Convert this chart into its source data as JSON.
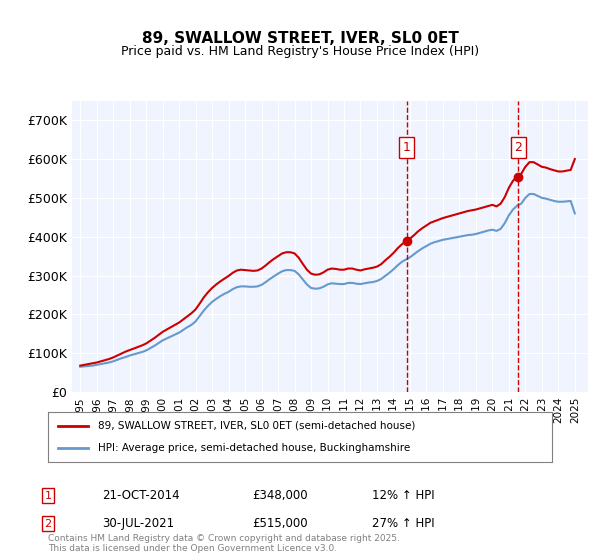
{
  "title": "89, SWALLOW STREET, IVER, SL0 0ET",
  "subtitle": "Price paid vs. HM Land Registry's House Price Index (HPI)",
  "legend_line1": "89, SWALLOW STREET, IVER, SL0 0ET (semi-detached house)",
  "legend_line2": "HPI: Average price, semi-detached house, Buckinghamshire",
  "sale1_label": "1",
  "sale1_date": "21-OCT-2014",
  "sale1_price": "£348,000",
  "sale1_hpi": "12% ↑ HPI",
  "sale1_year": 2014.8,
  "sale2_label": "2",
  "sale2_date": "30-JUL-2021",
  "sale2_price": "£515,000",
  "sale2_hpi": "27% ↑ HPI",
  "sale2_year": 2021.58,
  "hpi_color": "#6699cc",
  "price_color": "#cc0000",
  "marker_color": "#cc0000",
  "vline_color": "#cc0000",
  "background_color": "#f0f4ff",
  "ylabel_prefix": "£",
  "ytick_labels": [
    "£0",
    "£100K",
    "£200K",
    "£300K",
    "£400K",
    "£500K",
    "£600K",
    "£700K"
  ],
  "ytick_values": [
    0,
    100000,
    200000,
    300000,
    400000,
    500000,
    600000,
    700000
  ],
  "ylim": [
    0,
    750000
  ],
  "xlim_start": 1994.5,
  "xlim_end": 2025.8,
  "footer": "Contains HM Land Registry data © Crown copyright and database right 2025.\nThis data is licensed under the Open Government Licence v3.0.",
  "hpi_data_x": [
    1995.0,
    1995.25,
    1995.5,
    1995.75,
    1996.0,
    1996.25,
    1996.5,
    1996.75,
    1997.0,
    1997.25,
    1997.5,
    1997.75,
    1998.0,
    1998.25,
    1998.5,
    1998.75,
    1999.0,
    1999.25,
    1999.5,
    1999.75,
    2000.0,
    2000.25,
    2000.5,
    2000.75,
    2001.0,
    2001.25,
    2001.5,
    2001.75,
    2002.0,
    2002.25,
    2002.5,
    2002.75,
    2003.0,
    2003.25,
    2003.5,
    2003.75,
    2004.0,
    2004.25,
    2004.5,
    2004.75,
    2005.0,
    2005.25,
    2005.5,
    2005.75,
    2006.0,
    2006.25,
    2006.5,
    2006.75,
    2007.0,
    2007.25,
    2007.5,
    2007.75,
    2008.0,
    2008.25,
    2008.5,
    2008.75,
    2009.0,
    2009.25,
    2009.5,
    2009.75,
    2010.0,
    2010.25,
    2010.5,
    2010.75,
    2011.0,
    2011.25,
    2011.5,
    2011.75,
    2012.0,
    2012.25,
    2012.5,
    2012.75,
    2013.0,
    2013.25,
    2013.5,
    2013.75,
    2014.0,
    2014.25,
    2014.5,
    2014.75,
    2015.0,
    2015.25,
    2015.5,
    2015.75,
    2016.0,
    2016.25,
    2016.5,
    2016.75,
    2017.0,
    2017.25,
    2017.5,
    2017.75,
    2018.0,
    2018.25,
    2018.5,
    2018.75,
    2019.0,
    2019.25,
    2019.5,
    2019.75,
    2020.0,
    2020.25,
    2020.5,
    2020.75,
    2021.0,
    2021.25,
    2021.5,
    2021.75,
    2022.0,
    2022.25,
    2022.5,
    2022.75,
    2023.0,
    2023.25,
    2023.5,
    2023.75,
    2024.0,
    2024.25,
    2024.5,
    2024.75,
    2025.0
  ],
  "hpi_data_y": [
    65000,
    66000,
    67000,
    68000,
    70000,
    72000,
    74000,
    76000,
    79000,
    83000,
    87000,
    90000,
    94000,
    97000,
    100000,
    103000,
    107000,
    113000,
    119000,
    126000,
    133000,
    138000,
    143000,
    148000,
    153000,
    160000,
    167000,
    173000,
    182000,
    196000,
    210000,
    222000,
    232000,
    240000,
    247000,
    253000,
    258000,
    265000,
    270000,
    272000,
    272000,
    271000,
    271000,
    272000,
    276000,
    283000,
    291000,
    298000,
    305000,
    311000,
    314000,
    314000,
    312000,
    303000,
    290000,
    277000,
    268000,
    266000,
    267000,
    271000,
    277000,
    280000,
    279000,
    278000,
    278000,
    281000,
    281000,
    279000,
    278000,
    280000,
    282000,
    283000,
    286000,
    291000,
    299000,
    307000,
    316000,
    326000,
    335000,
    341000,
    347000,
    355000,
    363000,
    370000,
    376000,
    382000,
    386000,
    389000,
    392000,
    394000,
    396000,
    398000,
    400000,
    402000,
    404000,
    405000,
    407000,
    410000,
    413000,
    416000,
    418000,
    415000,
    420000,
    435000,
    455000,
    470000,
    480000,
    485000,
    500000,
    510000,
    510000,
    505000,
    500000,
    498000,
    495000,
    492000,
    490000,
    490000,
    491000,
    492000,
    460000
  ],
  "price_data_x": [
    1995.0,
    1995.25,
    1995.5,
    1995.75,
    1996.0,
    1996.25,
    1996.5,
    1996.75,
    1997.0,
    1997.25,
    1997.5,
    1997.75,
    1998.0,
    1998.25,
    1998.5,
    1998.75,
    1999.0,
    1999.25,
    1999.5,
    1999.75,
    2000.0,
    2000.25,
    2000.5,
    2000.75,
    2001.0,
    2001.25,
    2001.5,
    2001.75,
    2002.0,
    2002.25,
    2002.5,
    2002.75,
    2003.0,
    2003.25,
    2003.5,
    2003.75,
    2004.0,
    2004.25,
    2004.5,
    2004.75,
    2005.0,
    2005.25,
    2005.5,
    2005.75,
    2006.0,
    2006.25,
    2006.5,
    2006.75,
    2007.0,
    2007.25,
    2007.5,
    2007.75,
    2008.0,
    2008.25,
    2008.5,
    2008.75,
    2009.0,
    2009.25,
    2009.5,
    2009.75,
    2010.0,
    2010.25,
    2010.5,
    2010.75,
    2011.0,
    2011.25,
    2011.5,
    2011.75,
    2012.0,
    2012.25,
    2012.5,
    2012.75,
    2013.0,
    2013.25,
    2013.5,
    2013.75,
    2014.0,
    2014.25,
    2014.5,
    2014.75,
    2015.0,
    2015.25,
    2015.5,
    2015.75,
    2016.0,
    2016.25,
    2016.5,
    2016.75,
    2017.0,
    2017.25,
    2017.5,
    2017.75,
    2018.0,
    2018.25,
    2018.5,
    2018.75,
    2019.0,
    2019.25,
    2019.5,
    2019.75,
    2020.0,
    2020.25,
    2020.5,
    2020.75,
    2021.0,
    2021.25,
    2021.5,
    2021.75,
    2022.0,
    2022.25,
    2022.5,
    2022.75,
    2023.0,
    2023.25,
    2023.5,
    2023.75,
    2024.0,
    2024.25,
    2024.5,
    2024.75,
    2025.0
  ],
  "price_data_y": [
    68000,
    70000,
    72000,
    74000,
    76000,
    79000,
    82000,
    85000,
    89000,
    94000,
    99000,
    104000,
    108000,
    112000,
    116000,
    120000,
    125000,
    132000,
    139000,
    147000,
    155000,
    161000,
    167000,
    173000,
    179000,
    187000,
    195000,
    203000,
    213000,
    228000,
    244000,
    257000,
    268000,
    277000,
    285000,
    292000,
    299000,
    307000,
    313000,
    315000,
    314000,
    313000,
    312000,
    313000,
    318000,
    326000,
    335000,
    343000,
    350000,
    357000,
    360000,
    360000,
    357000,
    346000,
    330000,
    315000,
    305000,
    302000,
    303000,
    308000,
    315000,
    318000,
    317000,
    315000,
    315000,
    318000,
    318000,
    315000,
    313000,
    316000,
    318000,
    320000,
    323000,
    329000,
    339000,
    348000,
    358000,
    370000,
    380000,
    388000,
    395000,
    404000,
    414000,
    422000,
    429000,
    436000,
    440000,
    444000,
    448000,
    451000,
    454000,
    457000,
    460000,
    463000,
    466000,
    468000,
    470000,
    473000,
    476000,
    479000,
    482000,
    478000,
    485000,
    502000,
    526000,
    544000,
    555000,
    562000,
    580000,
    592000,
    592000,
    586000,
    580000,
    578000,
    574000,
    571000,
    568000,
    568000,
    570000,
    572000,
    600000
  ]
}
